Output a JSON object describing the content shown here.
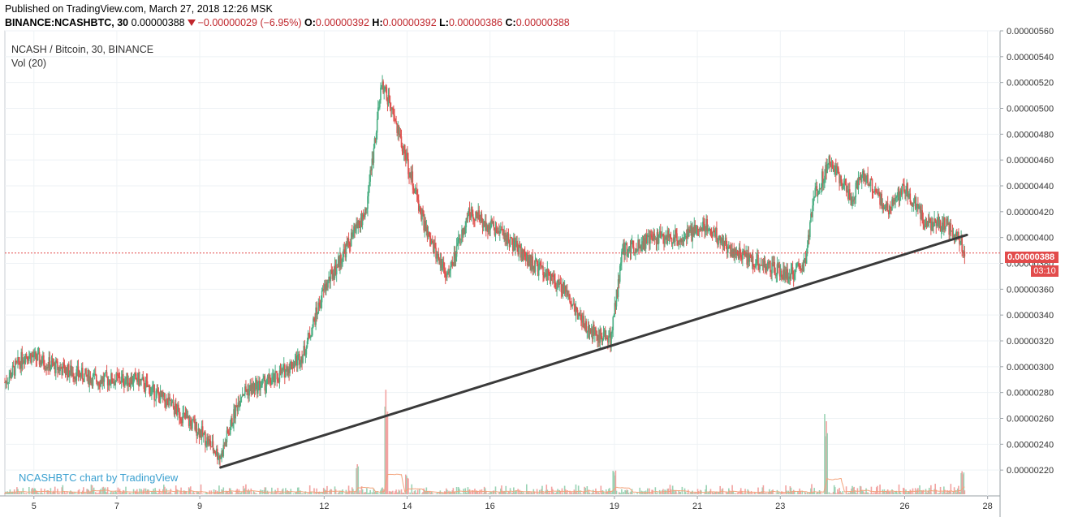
{
  "header": {
    "published_line": "Published on TradingView.com, March 27, 2018 12:26 MSK",
    "symbol_label": "BINANCE:NCASHBTC, 30",
    "last_price": "0.00000388",
    "change": "−0.00000029 (−6.95%)",
    "open_label": "O:",
    "open_value": "0.00000392",
    "high_label": "H:",
    "high_value": "0.00000392",
    "low_label": "L:",
    "low_value": "0.00000386",
    "close_label": "C:",
    "close_value": "0.00000388"
  },
  "legend": {
    "series_title": "NCASH / Bitcoin, 30, BINANCE",
    "volume_indicator": "Vol (20)"
  },
  "credit": "NCASHBTC chart by TradingView",
  "price_tag": "0.00000388",
  "countdown_tag": "03:10",
  "colors": {
    "up": "#4caf84",
    "down": "#e0524f",
    "vol_up": "#9ad3b5",
    "vol_down": "#f2a3a1",
    "vol_ma": "#f3a27a",
    "trendline": "#3a3a3a",
    "price_line": "#e24b4b",
    "grid": "#eef2f5"
  },
  "chart_data": {
    "type": "candlestick",
    "interval_minutes": 30,
    "x_ticks": [
      "5",
      "7",
      "9",
      "12",
      "14",
      "16",
      "19",
      "21",
      "23",
      "26",
      "28"
    ],
    "y_ticks": [
      "0.00000560",
      "0.00000540",
      "0.00000520",
      "0.00000500",
      "0.00000480",
      "0.00000460",
      "0.00000440",
      "0.00000420",
      "0.00000400",
      "0.00000380",
      "0.00000360",
      "0.00000340",
      "0.00000320",
      "0.00000300",
      "0.00000280",
      "0.00000260",
      "0.00000240",
      "0.00000220"
    ],
    "ylim": [
      2e-06,
      5.6e-06
    ],
    "xlim": [
      4.3,
      28.3
    ],
    "price_path": [
      [
        4.3,
        2.88e-06
      ],
      [
        4.8,
        3.1e-06
      ],
      [
        5.5,
        3e-06
      ],
      [
        6.5,
        2.9e-06
      ],
      [
        7.5,
        2.9e-06
      ],
      [
        8.3,
        2.7e-06
      ],
      [
        9.0,
        2.5e-06
      ],
      [
        9.5,
        2.3e-06
      ],
      [
        10.0,
        2.8e-06
      ],
      [
        10.8,
        2.9e-06
      ],
      [
        11.5,
        3.1e-06
      ],
      [
        12.0,
        3.6e-06
      ],
      [
        12.5,
        3.9e-06
      ],
      [
        13.0,
        4.2e-06
      ],
      [
        13.4,
        5.2e-06
      ],
      [
        13.9,
        4.7e-06
      ],
      [
        14.5,
        4e-06
      ],
      [
        15.0,
        3.7e-06
      ],
      [
        15.5,
        4.2e-06
      ],
      [
        16.4,
        4e-06
      ],
      [
        17.0,
        3.8e-06
      ],
      [
        17.8,
        3.6e-06
      ],
      [
        18.3,
        3.3e-06
      ],
      [
        18.9,
        3.2e-06
      ],
      [
        19.2,
        3.9e-06
      ],
      [
        20.0,
        4e-06
      ],
      [
        20.7,
        4e-06
      ],
      [
        21.2,
        4.1e-06
      ],
      [
        21.8,
        3.9e-06
      ],
      [
        22.5,
        3.8e-06
      ],
      [
        23.2,
        3.7e-06
      ],
      [
        23.6,
        3.8e-06
      ],
      [
        23.8,
        4.3e-06
      ],
      [
        24.2,
        4.6e-06
      ],
      [
        24.7,
        4.3e-06
      ],
      [
        25.0,
        4.5e-06
      ],
      [
        25.6,
        4.2e-06
      ],
      [
        26.0,
        4.4e-06
      ],
      [
        26.5,
        4.1e-06
      ],
      [
        27.0,
        4.1e-06
      ],
      [
        27.3,
        4e-06
      ],
      [
        27.45,
        3.88e-06
      ]
    ],
    "volume_spikes": [
      [
        13.5,
        0.9
      ],
      [
        24.1,
        0.66
      ],
      [
        12.8,
        0.25
      ],
      [
        14.0,
        0.18
      ],
      [
        19.0,
        0.2
      ],
      [
        27.4,
        0.2
      ]
    ],
    "trendline": [
      [
        9.5,
        2.22e-06
      ],
      [
        27.5,
        4.02e-06
      ]
    ],
    "last_price": 3.88e-06
  }
}
